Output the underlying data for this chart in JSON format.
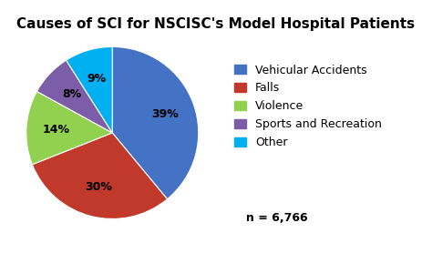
{
  "title": "Causes of SCI for NSCISC's Model Hospital Patients",
  "categories": [
    "Vehicular Accidents",
    "Falls",
    "Violence",
    "Sports and Recreation",
    "Other"
  ],
  "values": [
    39,
    30,
    14,
    8,
    9
  ],
  "colors": [
    "#4472C4",
    "#C0392B",
    "#92D050",
    "#7B5EA7",
    "#00B0F0"
  ],
  "labels": [
    "39%",
    "30%",
    "14%",
    "8%",
    "9%"
  ],
  "startangle": 90,
  "annotation": "n = 6,766",
  "title_fontsize": 11,
  "legend_fontsize": 9,
  "label_fontsize": 9
}
